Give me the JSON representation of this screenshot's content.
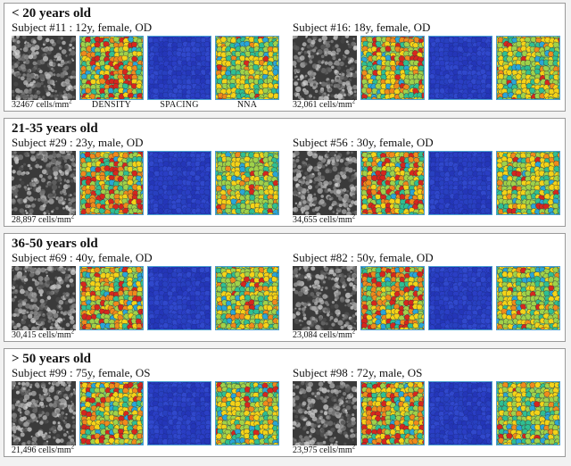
{
  "map_labels": {
    "density": "DENSITY",
    "spacing": "SPACING",
    "nna": "NNA"
  },
  "colors": {
    "spacing_blue": "#2a3ec4",
    "density_palette": [
      "#d7261e",
      "#f08a1c",
      "#f4d318",
      "#9fd24a",
      "#2fbf92",
      "#29a6d8"
    ],
    "nna_palette": [
      "#f4d318",
      "#9fd24a",
      "#2fbf92",
      "#29a6d8",
      "#f08a1c",
      "#d7261e"
    ],
    "border": "#4aa0d0"
  },
  "groups": [
    {
      "title": "< 20 years old",
      "subjects": [
        {
          "label": "Subject #11 : 12y, female, OD",
          "count_text": "32467 cells/mm",
          "unit_exp": "2",
          "show_map_labels": true
        },
        {
          "label": "Subject #16: 18y, female, OD",
          "count_text": "32,061 cells/mm",
          "unit_exp": "2",
          "show_map_labels": false
        }
      ]
    },
    {
      "title": "21-35 years old",
      "subjects": [
        {
          "label": "Subject #29 : 23y, male, OD",
          "count_text": "28,897 cells/mm",
          "unit_exp": "2"
        },
        {
          "label": "Subject #56 : 30y, female, OD",
          "count_text": "34,655 cells/mm",
          "unit_exp": "2"
        }
      ]
    },
    {
      "title": "36-50 years old",
      "subjects": [
        {
          "label": "Subject #69 : 40y, female, OD",
          "count_text": "30,415 cells/mm",
          "unit_exp": "2"
        },
        {
          "label": "Subject #82 : 50y, female, OD",
          "count_text": "23,084 cells/mm",
          "unit_exp": "2"
        }
      ]
    },
    {
      "title": "> 50 years old",
      "subjects": [
        {
          "label": "Subject #99 : 75y, female, OS",
          "count_text": "21,496 cells/mm",
          "unit_exp": "2"
        },
        {
          "label": "Subject #98 : 72y, male, OS",
          "count_text": "23,975 cells/mm",
          "unit_exp": "2"
        }
      ]
    }
  ]
}
